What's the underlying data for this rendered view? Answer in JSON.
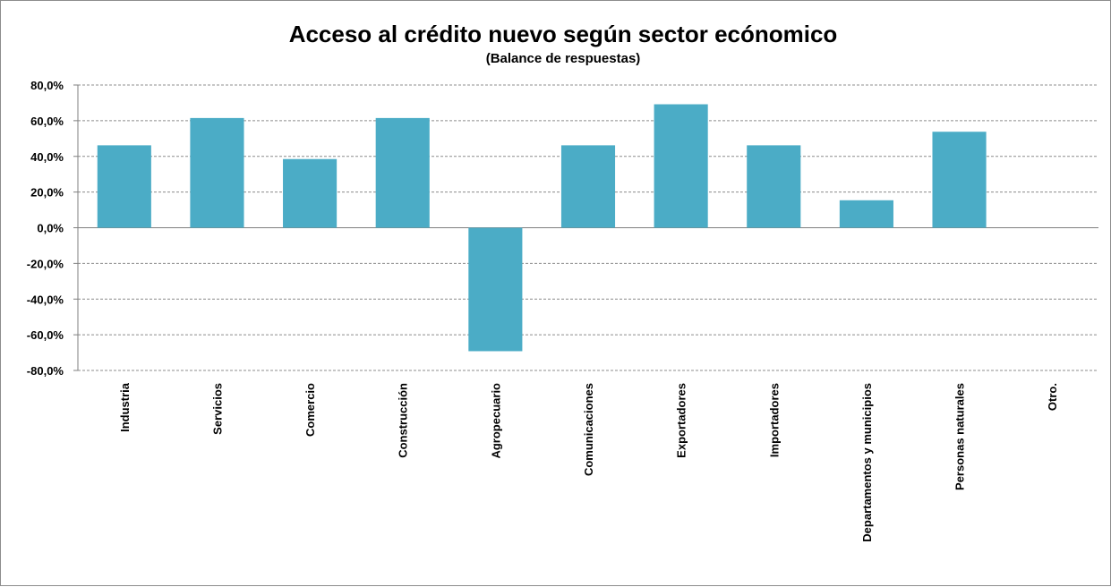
{
  "chart_data": {
    "type": "bar",
    "title": "Acceso al crédito nuevo según sector ecónomico",
    "subtitle": "(Balance de respuestas)",
    "xlabel": "",
    "ylabel": "",
    "ylim": [
      -80,
      80
    ],
    "yticks": [
      80,
      60,
      40,
      20,
      0,
      -20,
      -40,
      -60,
      -80
    ],
    "ytick_labels": [
      "80,0%",
      "60,0%",
      "40,0%",
      "20,0%",
      "0,0%",
      "-20,0%",
      "-40,0%",
      "-60,0%",
      "-80,0%"
    ],
    "grid": true,
    "legend": "none",
    "bar_color": "#4bacc6",
    "categories": [
      "Industria",
      "Servicios",
      "Comercio",
      "Construcción",
      "Agropecuario",
      "Comunicaciones",
      "Exportadores",
      "Importadores",
      "Departamentos y municipios",
      "Personas naturales",
      "Otro."
    ],
    "values": [
      46.2,
      61.5,
      38.5,
      61.5,
      -69.2,
      46.2,
      69.2,
      46.2,
      15.4,
      53.8,
      0
    ]
  }
}
